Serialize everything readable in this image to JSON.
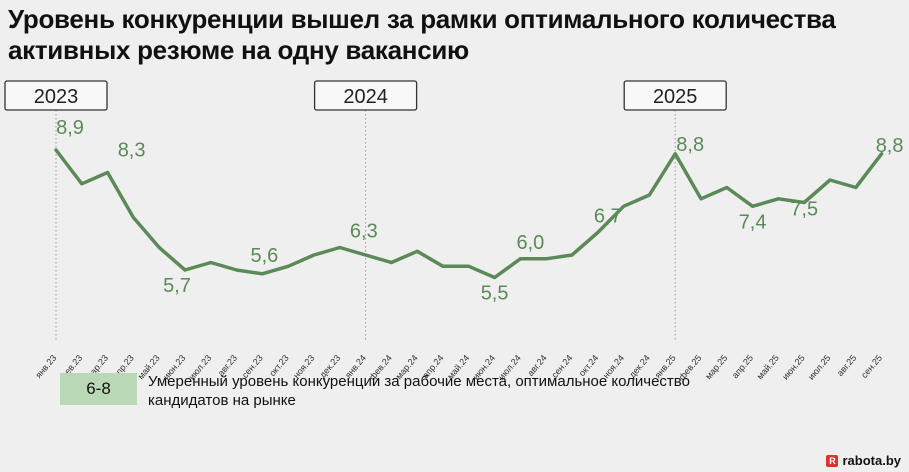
{
  "title": "Уровень конкуренции вышел за рамки оптимального количества активных резюме на одну вакансию",
  "legend": {
    "range": "6-8",
    "text": "Умеренный уровень конкуренции за рабочие места, оптимальное количество кандидатов на рынке"
  },
  "brand": {
    "icon_letter": "R",
    "name": "rabota.by"
  },
  "colors": {
    "line": "#5b8a58",
    "swatch": "#b9d9b6",
    "background": "#efefef"
  },
  "chart_data": {
    "type": "line",
    "title": "Уровень конкуренции вышел за рамки оптимального количества активных резюме на одну вакансию",
    "xlabel": "",
    "ylabel": "",
    "ylim": [
      5,
      9.5
    ],
    "grid": false,
    "categories": [
      "янв.23",
      "фев.23",
      "мар.23",
      "апр.23",
      "май.23",
      "июн.23",
      "июл.23",
      "авг.23",
      "сен.23",
      "окт.23",
      "ноя.23",
      "дек.23",
      "янв.24",
      "фев.24",
      "мар.24",
      "апр.24",
      "май.24",
      "июн.24",
      "июл.24",
      "авг.24",
      "сен.24",
      "окт.24",
      "ноя.24",
      "дек.24",
      "янв.25",
      "фев.25",
      "мар.25",
      "апр.25",
      "май.25",
      "июн.25",
      "июл.25",
      "авг.25",
      "сен.25"
    ],
    "values": [
      8.9,
      8.0,
      8.3,
      7.1,
      6.3,
      5.7,
      5.9,
      5.7,
      5.6,
      5.8,
      6.1,
      6.3,
      6.1,
      5.9,
      6.2,
      5.8,
      5.8,
      5.5,
      6.0,
      6.0,
      6.1,
      6.7,
      7.4,
      7.7,
      8.8,
      7.6,
      7.9,
      7.4,
      7.6,
      7.5,
      8.1,
      7.9,
      8.8
    ],
    "year_markers": [
      {
        "label": "2023",
        "index": 0
      },
      {
        "label": "2024",
        "index": 12
      },
      {
        "label": "2025",
        "index": 24
      }
    ],
    "point_labels": [
      {
        "index": 0,
        "text": "8,9"
      },
      {
        "index": 2,
        "text": "8,3"
      },
      {
        "index": 5,
        "text": "5,7"
      },
      {
        "index": 8,
        "text": "5,6"
      },
      {
        "index": 11,
        "text": "6,3"
      },
      {
        "index": 17,
        "text": "5,5"
      },
      {
        "index": 18,
        "text": "6,0"
      },
      {
        "index": 21,
        "text": "6,7"
      },
      {
        "index": 24,
        "text": "8,8"
      },
      {
        "index": 27,
        "text": "7,4"
      },
      {
        "index": 29,
        "text": "7,5"
      },
      {
        "index": 32,
        "text": "8,8"
      }
    ]
  }
}
